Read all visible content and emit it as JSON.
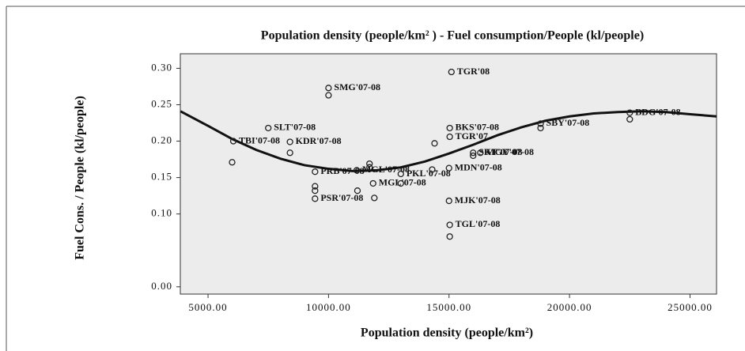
{
  "chart_data": {
    "type": "scatter",
    "title": "Population density (people/km² ) - Fuel consumption/People (kl/people)",
    "x_label": "Population density (people/km²)",
    "y_label": "Fuel Cons. / People (kl/people)",
    "xlim": [
      3850,
      26100
    ],
    "xticks": [
      {
        "value": 5000,
        "label": "5000.00"
      },
      {
        "value": 10000,
        "label": "10000.00"
      },
      {
        "value": 15000,
        "label": "15000.00"
      },
      {
        "value": 20000,
        "label": "20000.00"
      },
      {
        "value": 25000,
        "label": "25000.00"
      }
    ],
    "ylim": [
      -0.01,
      0.32
    ],
    "yticks": [
      {
        "value": 0,
        "label": "0.00"
      },
      {
        "value": 0.1,
        "label": "0.10"
      },
      {
        "value": 0.15,
        "label": "0.15"
      },
      {
        "value": 0.2,
        "label": "0.20"
      },
      {
        "value": 0.25,
        "label": "0.25"
      },
      {
        "value": 0.3,
        "label": "0.30"
      }
    ],
    "color": "#222",
    "series": [
      {
        "x": [
          15100,
          10000,
          10000,
          7500,
          6050,
          6000,
          8400,
          8400,
          9440,
          9440,
          9440,
          9440,
          11170,
          11700,
          11700,
          11200,
          11850,
          11900,
          13000,
          13000,
          14300,
          15000,
          15000,
          15030,
          15030,
          15030,
          15030,
          14400,
          16000,
          16000,
          16300,
          18800,
          18800,
          22500,
          22500
        ],
        "values": [
          0.295,
          0.273,
          0.263,
          0.218,
          0.2,
          0.171,
          0.199,
          0.184,
          0.158,
          0.138,
          0.132,
          0.121,
          0.16,
          0.169,
          0.164,
          0.132,
          0.142,
          0.122,
          0.155,
          0.142,
          0.161,
          0.163,
          0.118,
          0.085,
          0.069,
          0.218,
          0.206,
          0.197,
          0.184,
          0.18,
          0.184,
          0.224,
          0.218,
          0.239,
          0.23
        ],
        "labels": [
          "TGR'08",
          "SMG'07-08",
          null,
          "SLT'07-08",
          "TBI'07-08",
          null,
          "KDR'07-08",
          null,
          "PRB'07-08",
          null,
          null,
          "PSR'07-08",
          "MGL'07-08",
          null,
          null,
          null,
          "MGL'07-08",
          null,
          "PKL'07-08",
          null,
          null,
          "MDN'07-08",
          "MJK'07-08",
          "TGL'07-08",
          null,
          "BKS'07-08",
          "TGR'07",
          null,
          "SKT'07-08",
          null,
          "MGY'07-08",
          "SBY'07-08",
          null,
          "BDG'07-08",
          null
        ]
      }
    ],
    "fit": {
      "x": [
        3860,
        5000,
        6000,
        7000,
        8000,
        9000,
        10000,
        11000,
        12000,
        13000,
        14000,
        15000,
        16000,
        17000,
        18000,
        19000,
        20000,
        21000,
        22000,
        23000,
        24000,
        25000,
        26100
      ],
      "values": [
        0.241,
        0.221,
        0.203,
        0.188,
        0.176,
        0.167,
        0.162,
        0.159,
        0.16,
        0.164,
        0.172,
        0.183,
        0.195,
        0.208,
        0.219,
        0.228,
        0.234,
        0.238,
        0.24,
        0.241,
        0.24,
        0.237,
        0.234
      ]
    }
  }
}
